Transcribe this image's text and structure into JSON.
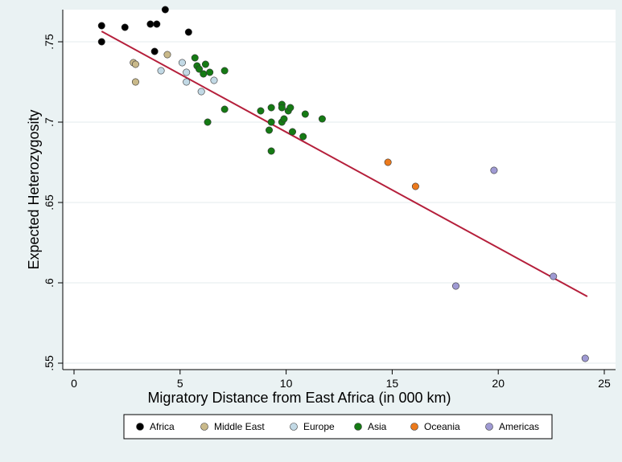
{
  "chart_data": {
    "type": "scatter",
    "title": "",
    "xlabel": "Migratory Distance from East Africa (in 000 km)",
    "ylabel": "Expected Heterozygosity",
    "xlim": [
      0,
      25
    ],
    "ylim": [
      0.55,
      0.77
    ],
    "x_ticks": [
      {
        "value": 0,
        "label": "0"
      },
      {
        "value": 5,
        "label": "5"
      },
      {
        "value": 10,
        "label": "10"
      },
      {
        "value": 15,
        "label": "15"
      },
      {
        "value": 20,
        "label": "20"
      },
      {
        "value": 25,
        "label": "25"
      }
    ],
    "y_ticks": [
      {
        "value": 0.55,
        "label": ".55"
      },
      {
        "value": 0.6,
        "label": ".6"
      },
      {
        "value": 0.65,
        "label": ".65"
      },
      {
        "value": 0.7,
        "label": ".7"
      },
      {
        "value": 0.75,
        "label": ".75"
      }
    ],
    "grid": "horizontal",
    "legend_position": "bottom",
    "series": [
      {
        "name": "Africa",
        "color": "#000000",
        "points": [
          [
            1.3,
            0.76
          ],
          [
            1.3,
            0.75
          ],
          [
            2.4,
            0.759
          ],
          [
            3.6,
            0.761
          ],
          [
            3.9,
            0.761
          ],
          [
            4.3,
            0.77
          ],
          [
            3.8,
            0.744
          ],
          [
            5.4,
            0.756
          ]
        ]
      },
      {
        "name": "Middle East",
        "color": "#c9b98a",
        "points": [
          [
            2.8,
            0.737
          ],
          [
            2.9,
            0.736
          ],
          [
            2.9,
            0.725
          ],
          [
            4.4,
            0.742
          ]
        ]
      },
      {
        "name": "Europe",
        "color": "#c2d9e5",
        "points": [
          [
            4.1,
            0.732
          ],
          [
            5.1,
            0.737
          ],
          [
            5.3,
            0.731
          ],
          [
            5.3,
            0.725
          ],
          [
            6.0,
            0.719
          ],
          [
            6.6,
            0.726
          ]
        ]
      },
      {
        "name": "Asia",
        "color": "#157a14",
        "points": [
          [
            5.7,
            0.74
          ],
          [
            5.8,
            0.735
          ],
          [
            5.9,
            0.733
          ],
          [
            6.1,
            0.73
          ],
          [
            6.2,
            0.736
          ],
          [
            6.4,
            0.731
          ],
          [
            7.1,
            0.732
          ],
          [
            6.3,
            0.7
          ],
          [
            7.1,
            0.708
          ],
          [
            8.8,
            0.707
          ],
          [
            9.3,
            0.709
          ],
          [
            9.2,
            0.695
          ],
          [
            9.3,
            0.7
          ],
          [
            9.3,
            0.682
          ],
          [
            9.8,
            0.711
          ],
          [
            9.8,
            0.709
          ],
          [
            9.8,
            0.7
          ],
          [
            9.9,
            0.702
          ],
          [
            10.1,
            0.707
          ],
          [
            10.2,
            0.709
          ],
          [
            10.3,
            0.694
          ],
          [
            10.8,
            0.691
          ],
          [
            10.9,
            0.705
          ],
          [
            11.7,
            0.702
          ]
        ]
      },
      {
        "name": "Oceania",
        "color": "#ec7a1c",
        "points": [
          [
            14.8,
            0.675
          ],
          [
            16.1,
            0.66
          ]
        ]
      },
      {
        "name": "Americas",
        "color": "#9f9ad3",
        "points": [
          [
            18.0,
            0.598
          ],
          [
            19.8,
            0.67
          ],
          [
            22.6,
            0.604
          ],
          [
            24.1,
            0.553
          ]
        ]
      }
    ],
    "fit_line": {
      "color": "#b51f3b",
      "points": [
        [
          1.3,
          0.7565
        ],
        [
          24.2,
          0.5915
        ]
      ]
    }
  }
}
